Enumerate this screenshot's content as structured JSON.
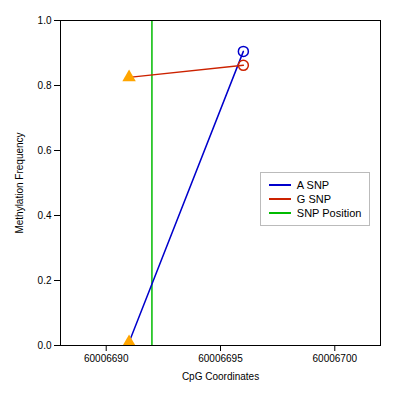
{
  "chart_data": {
    "type": "line",
    "xlabel": "CpG Coordinates",
    "ylabel": "Methylation Frequency",
    "x": [
      60006691,
      60006696
    ],
    "series": [
      {
        "name": "A SNP",
        "color": "#0000CC",
        "values": [
          0.01,
          0.905
        ]
      },
      {
        "name": "G SNP",
        "color": "#CC2200",
        "values": [
          0.825,
          0.862
        ]
      },
      {
        "name": "SNP Position",
        "type": "rule",
        "color": "#00BB00",
        "x": [
          60006692
        ]
      }
    ],
    "markers": [
      {
        "x": 60006691,
        "y": 0.01,
        "marker": "triangle",
        "color": "#FFA500"
      },
      {
        "x": 60006691,
        "y": 0.825,
        "marker": "triangle",
        "color": "#FFA500"
      },
      {
        "x": 60006696,
        "y": 0.905,
        "marker": "open_circle",
        "color": "#0000CC"
      },
      {
        "x": 60006696,
        "y": 0.862,
        "marker": "open_circle",
        "color": "#CC2200"
      }
    ],
    "xlim": [
      60006688,
      60006702
    ],
    "ylim": [
      0.0,
      1.0
    ],
    "xticks": [
      60006690,
      60006695,
      60006700
    ],
    "yticks": [
      {
        "value": 0.0,
        "label": "0.0"
      },
      0.2,
      0.4,
      0.6,
      0.8,
      {
        "value": 1.0,
        "label": "1.0"
      }
    ],
    "grid": false,
    "legend": "right"
  }
}
